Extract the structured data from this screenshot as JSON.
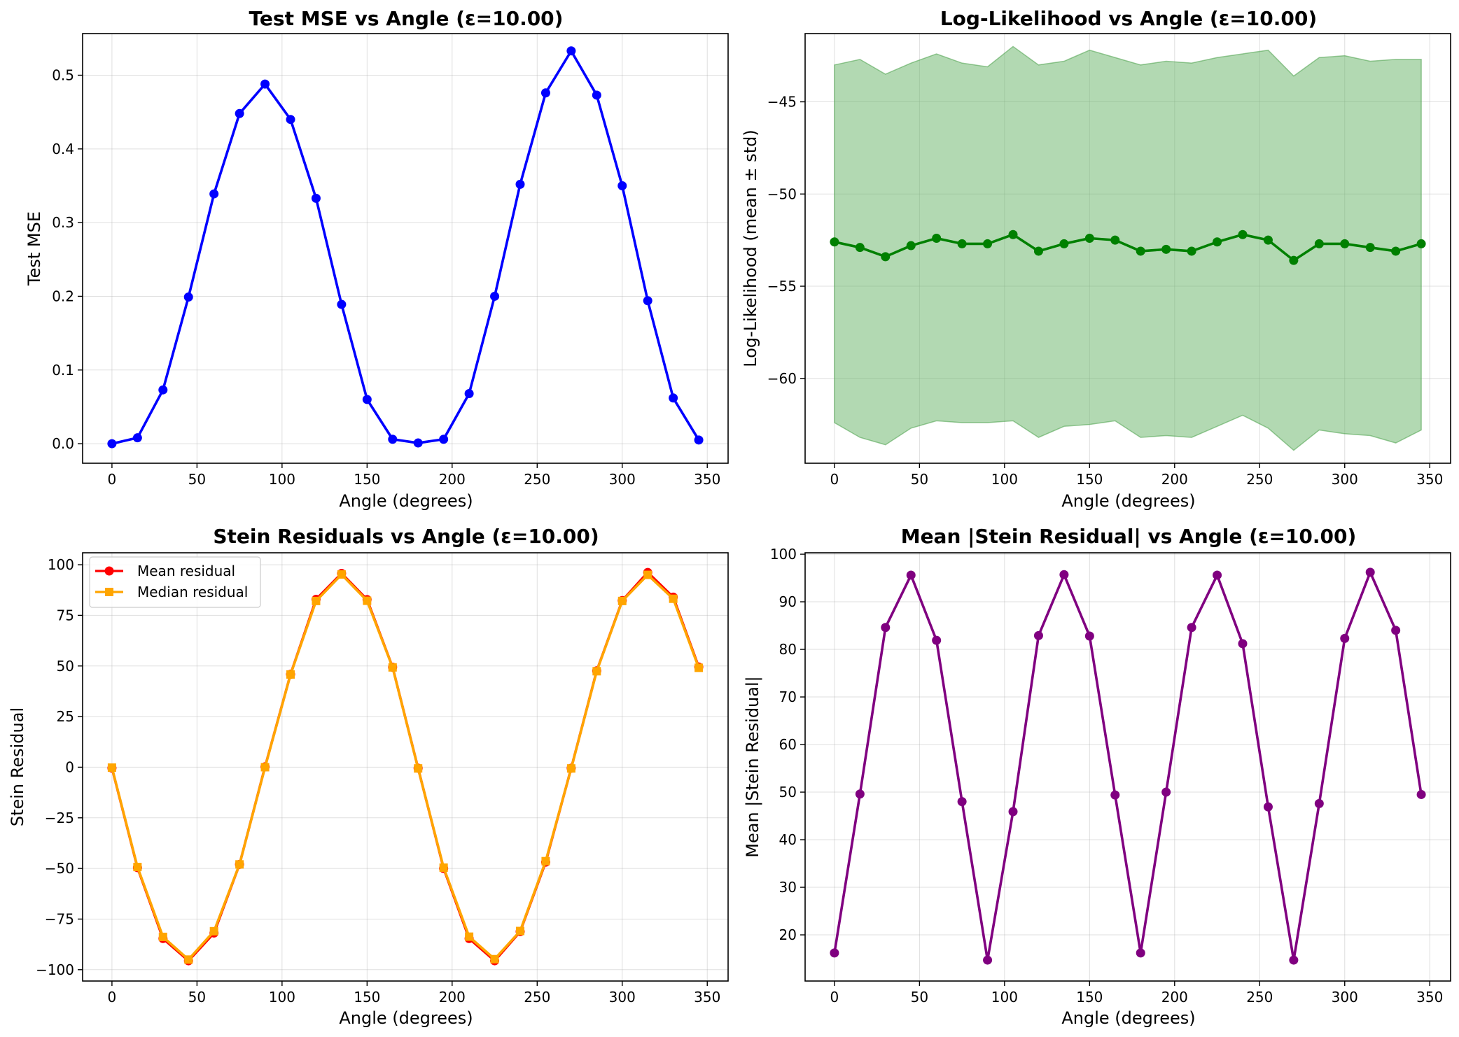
{
  "chart_data": [
    {
      "type": "line",
      "title": "Test MSE vs Angle (ε=10.00)",
      "xlabel": "Angle (degrees)",
      "ylabel": "Test MSE",
      "xlim": [
        -17.25,
        362.25
      ],
      "ylim": [
        -0.0265,
        0.5565
      ],
      "xticks": [
        0,
        50,
        100,
        150,
        200,
        250,
        300,
        350
      ],
      "yticks": [
        0.0,
        0.1,
        0.2,
        0.3,
        0.4,
        0.5
      ],
      "ytick_labels": [
        "0.0",
        "0.1",
        "0.2",
        "0.3",
        "0.4",
        "0.5"
      ],
      "grid": true,
      "x": [
        0,
        15,
        30,
        45,
        60,
        75,
        90,
        105,
        120,
        135,
        150,
        165,
        180,
        195,
        210,
        225,
        240,
        255,
        270,
        285,
        300,
        315,
        330,
        345
      ],
      "series": [
        {
          "name": "Test MSE",
          "color": "#0000ff",
          "marker": "circle",
          "values": [
            0.0,
            0.008,
            0.073,
            0.199,
            0.339,
            0.448,
            0.488,
            0.44,
            0.333,
            0.189,
            0.06,
            0.006,
            0.001,
            0.006,
            0.068,
            0.2,
            0.352,
            0.476,
            0.533,
            0.473,
            0.35,
            0.194,
            0.062,
            0.005
          ]
        }
      ]
    },
    {
      "type": "line",
      "title": "Log-Likelihood vs Angle (ε=10.00)",
      "xlabel": "Angle (degrees)",
      "ylabel": "Log-Likelihood (mean ± std)",
      "xlim": [
        -17.25,
        362.25
      ],
      "ylim": [
        -64.6,
        -41.3
      ],
      "xticks": [
        0,
        50,
        100,
        150,
        200,
        250,
        300,
        350
      ],
      "yticks": [
        -60,
        -55,
        -50,
        -45
      ],
      "ytick_labels": [
        "−60",
        "−55",
        "−50",
        "−45"
      ],
      "grid": true,
      "x": [
        0,
        15,
        30,
        45,
        60,
        75,
        90,
        105,
        120,
        135,
        150,
        165,
        180,
        195,
        210,
        225,
        240,
        255,
        270,
        285,
        300,
        315,
        330,
        345
      ],
      "series": [
        {
          "name": "Mean",
          "color": "#008000",
          "marker": "circle",
          "values": [
            -52.6,
            -52.9,
            -53.4,
            -52.8,
            -52.4,
            -52.7,
            -52.7,
            -52.2,
            -53.1,
            -52.7,
            -52.4,
            -52.5,
            -53.1,
            -53.0,
            -53.1,
            -52.6,
            -52.2,
            -52.5,
            -53.6,
            -52.7,
            -52.7,
            -52.9,
            -53.1,
            -52.7
          ]
        }
      ],
      "band": {
        "name": "± std",
        "color": "#66b366",
        "opacity": 0.5,
        "upper": [
          -43.0,
          -42.7,
          -43.5,
          -42.9,
          -42.4,
          -42.9,
          -43.1,
          -42.0,
          -43.0,
          -42.8,
          -42.2,
          -42.6,
          -43.0,
          -42.8,
          -42.9,
          -42.6,
          -42.4,
          -42.2,
          -43.6,
          -42.6,
          -42.5,
          -42.8,
          -42.7,
          -42.7
        ],
        "lower": [
          -62.4,
          -63.2,
          -63.6,
          -62.7,
          -62.3,
          -62.4,
          -62.4,
          -62.3,
          -63.2,
          -62.6,
          -62.5,
          -62.3,
          -63.2,
          -63.1,
          -63.2,
          -62.6,
          -62.0,
          -62.7,
          -63.9,
          -62.8,
          -63.0,
          -63.1,
          -63.5,
          -62.8
        ]
      }
    },
    {
      "type": "line",
      "title": "Stein Residuals vs Angle (ε=10.00)",
      "xlabel": "Angle (degrees)",
      "ylabel": "Stein Residual",
      "xlim": [
        -17.25,
        362.25
      ],
      "ylim": [
        -105.6,
        105.9
      ],
      "xticks": [
        0,
        50,
        100,
        150,
        200,
        250,
        300,
        350
      ],
      "yticks": [
        -100,
        -75,
        -50,
        -25,
        0,
        25,
        50,
        75,
        100
      ],
      "ytick_labels": [
        "−100",
        "−75",
        "−50",
        "−25",
        "0",
        "25",
        "50",
        "75",
        "100"
      ],
      "grid": true,
      "legend": "upper left",
      "x": [
        0,
        15,
        30,
        45,
        60,
        75,
        90,
        105,
        120,
        135,
        150,
        165,
        180,
        195,
        210,
        225,
        240,
        255,
        270,
        285,
        300,
        315,
        330,
        345
      ],
      "series": [
        {
          "name": "Mean residual",
          "color": "#ff0000",
          "marker": "circle",
          "values": [
            -0.4,
            -49.6,
            -84.6,
            -95.6,
            -81.9,
            -48.0,
            0.2,
            45.9,
            82.9,
            95.7,
            82.8,
            49.4,
            -0.5,
            -50.0,
            -84.6,
            -95.6,
            -81.2,
            -46.9,
            -0.5,
            47.6,
            82.3,
            96.2,
            84.0,
            49.5
          ]
        },
        {
          "name": "Median residual",
          "color": "#ffa500",
          "marker": "square",
          "values": [
            -0.2,
            -49.3,
            -83.8,
            -95.0,
            -81.0,
            -48.0,
            0.0,
            45.8,
            82.1,
            95.2,
            82.2,
            49.3,
            -0.6,
            -49.6,
            -83.7,
            -94.8,
            -80.9,
            -46.4,
            -0.6,
            47.4,
            82.1,
            95.0,
            83.2,
            49.1
          ]
        }
      ]
    },
    {
      "type": "line",
      "title": "Mean |Stein Residual| vs Angle (ε=10.00)",
      "xlabel": "Angle (degrees)",
      "ylabel": "Mean |Stein Residual|",
      "xlim": [
        -17.25,
        362.25
      ],
      "ylim": [
        10.3,
        100.3
      ],
      "xticks": [
        0,
        50,
        100,
        150,
        200,
        250,
        300,
        350
      ],
      "yticks": [
        20,
        30,
        40,
        50,
        60,
        70,
        80,
        90,
        100
      ],
      "ytick_labels": [
        "20",
        "30",
        "40",
        "50",
        "60",
        "70",
        "80",
        "90",
        "100"
      ],
      "grid": true,
      "x": [
        0,
        15,
        30,
        45,
        60,
        75,
        90,
        105,
        120,
        135,
        150,
        165,
        180,
        195,
        210,
        225,
        240,
        255,
        270,
        285,
        300,
        315,
        330,
        345
      ],
      "series": [
        {
          "name": "Mean |Stein Residual|",
          "color": "#800080",
          "marker": "circle",
          "values": [
            16.2,
            49.6,
            84.6,
            95.6,
            81.9,
            48.0,
            14.7,
            45.9,
            82.9,
            95.7,
            82.8,
            49.4,
            16.2,
            50.0,
            84.6,
            95.6,
            81.2,
            46.9,
            14.7,
            47.6,
            82.3,
            96.2,
            84.0,
            49.5
          ]
        }
      ]
    }
  ]
}
